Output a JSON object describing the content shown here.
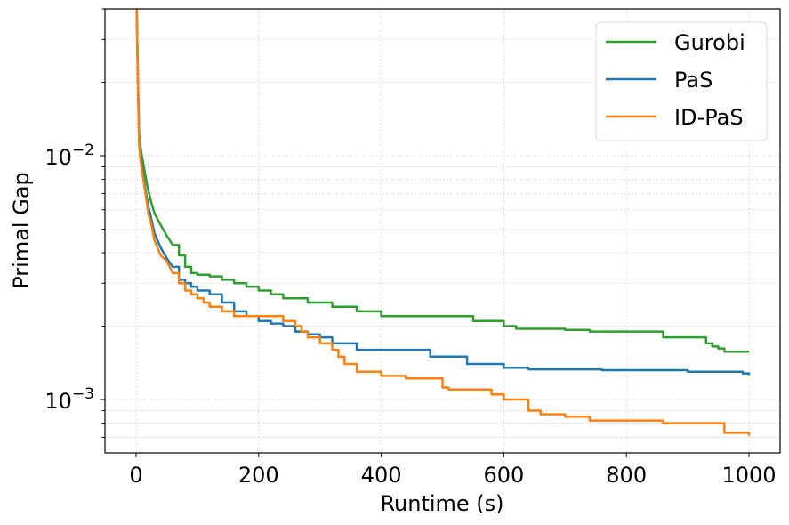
{
  "chart_data": {
    "type": "line",
    "title": "",
    "xlabel": "Runtime (s)",
    "ylabel": "Primal Gap",
    "xscale": "linear",
    "yscale": "log",
    "xlim": [
      -50,
      1050
    ],
    "ylim": [
      0.0006,
      0.04
    ],
    "xticks": [
      0,
      200,
      400,
      600,
      800,
      1000
    ],
    "xtick_labels": [
      "0",
      "200",
      "400",
      "600",
      "800",
      "1000"
    ],
    "yticks": [
      0.01,
      0.001
    ],
    "ytick_labels": [
      {
        "base": "10",
        "exp": "−2"
      },
      {
        "base": "10",
        "exp": "−3"
      }
    ],
    "grid": true,
    "legend_position": "upper right",
    "series": [
      {
        "name": "Gurobi",
        "color": "#2ca02c",
        "x": [
          1,
          3,
          5,
          8,
          12,
          16,
          20,
          25,
          30,
          40,
          50,
          60,
          70,
          80,
          90,
          100,
          120,
          140,
          160,
          180,
          200,
          220,
          240,
          260,
          280,
          300,
          320,
          340,
          360,
          380,
          400,
          440,
          480,
          520,
          550,
          560,
          590,
          600,
          620,
          660,
          700,
          740,
          760,
          800,
          820,
          850,
          860,
          870,
          880,
          900,
          920,
          930,
          940,
          950,
          960,
          970,
          1000
        ],
        "values": [
          0.04,
          0.02,
          0.0125,
          0.0105,
          0.0092,
          0.0081,
          0.0072,
          0.0064,
          0.0058,
          0.0052,
          0.0047,
          0.0043,
          0.0039,
          0.0035,
          0.0033,
          0.00325,
          0.0032,
          0.0031,
          0.003,
          0.0029,
          0.0028,
          0.0027,
          0.0026,
          0.0026,
          0.0025,
          0.0025,
          0.0024,
          0.0024,
          0.0023,
          0.0023,
          0.0022,
          0.0022,
          0.0022,
          0.0022,
          0.0021,
          0.0021,
          0.0021,
          0.002,
          0.00195,
          0.00195,
          0.00193,
          0.0019,
          0.0019,
          0.0019,
          0.0019,
          0.0019,
          0.0018,
          0.0018,
          0.0018,
          0.0018,
          0.0018,
          0.0017,
          0.00165,
          0.00162,
          0.00157,
          0.00157,
          0.00157
        ]
      },
      {
        "name": "PaS",
        "color": "#1f77b4",
        "x": [
          1,
          3,
          5,
          8,
          12,
          16,
          20,
          25,
          30,
          40,
          50,
          60,
          70,
          80,
          90,
          100,
          120,
          130,
          140,
          160,
          180,
          200,
          220,
          240,
          250,
          260,
          280,
          300,
          320,
          340,
          360,
          400,
          420,
          440,
          460,
          480,
          500,
          520,
          540,
          560,
          580,
          600,
          640,
          700,
          760,
          800,
          860,
          900,
          960,
          990,
          1000
        ],
        "values": [
          0.04,
          0.02,
          0.0115,
          0.0095,
          0.0082,
          0.0071,
          0.0062,
          0.0055,
          0.0048,
          0.0042,
          0.0038,
          0.0035,
          0.0031,
          0.003,
          0.0029,
          0.0028,
          0.0027,
          0.0027,
          0.0025,
          0.0023,
          0.0022,
          0.0021,
          0.00205,
          0.002,
          0.002,
          0.0019,
          0.00185,
          0.0018,
          0.0017,
          0.0017,
          0.0016,
          0.0016,
          0.0016,
          0.0016,
          0.0016,
          0.0015,
          0.0015,
          0.0015,
          0.0014,
          0.0014,
          0.0014,
          0.00135,
          0.00133,
          0.00133,
          0.00132,
          0.00132,
          0.00132,
          0.0013,
          0.0013,
          0.00128,
          0.00126
        ]
      },
      {
        "name": "ID-PaS",
        "color": "#ff7f0e",
        "x": [
          1,
          3,
          5,
          8,
          12,
          16,
          20,
          25,
          30,
          40,
          50,
          60,
          70,
          80,
          90,
          100,
          110,
          120,
          140,
          160,
          180,
          200,
          220,
          240,
          250,
          260,
          270,
          280,
          300,
          320,
          330,
          340,
          360,
          380,
          400,
          440,
          460,
          480,
          500,
          510,
          540,
          560,
          580,
          600,
          620,
          640,
          660,
          680,
          700,
          740,
          760,
          800,
          860,
          900,
          940,
          950,
          960,
          980,
          1000
        ],
        "values": [
          0.04,
          0.02,
          0.011,
          0.0092,
          0.0079,
          0.0068,
          0.0058,
          0.0052,
          0.0045,
          0.0039,
          0.0037,
          0.0033,
          0.003,
          0.0028,
          0.0027,
          0.0026,
          0.0025,
          0.0024,
          0.0023,
          0.0022,
          0.0022,
          0.0022,
          0.0022,
          0.0021,
          0.0021,
          0.002,
          0.0019,
          0.0018,
          0.0017,
          0.0016,
          0.0015,
          0.0014,
          0.0013,
          0.0013,
          0.00125,
          0.00122,
          0.00122,
          0.00122,
          0.00112,
          0.0011,
          0.0011,
          0.0011,
          0.00105,
          0.001,
          0.001,
          0.0009,
          0.00087,
          0.00087,
          0.00085,
          0.00082,
          0.00082,
          0.00082,
          0.0008,
          0.0008,
          0.0008,
          0.0008,
          0.00073,
          0.00073,
          0.00071
        ]
      }
    ]
  },
  "legend": {
    "items": [
      {
        "label": "Gurobi",
        "color": "#2ca02c"
      },
      {
        "label": "PaS",
        "color": "#1f77b4"
      },
      {
        "label": "ID-PaS",
        "color": "#ff7f0e"
      }
    ]
  },
  "axes": {
    "xlabel": "Runtime (s)",
    "ylabel": "Primal Gap"
  }
}
